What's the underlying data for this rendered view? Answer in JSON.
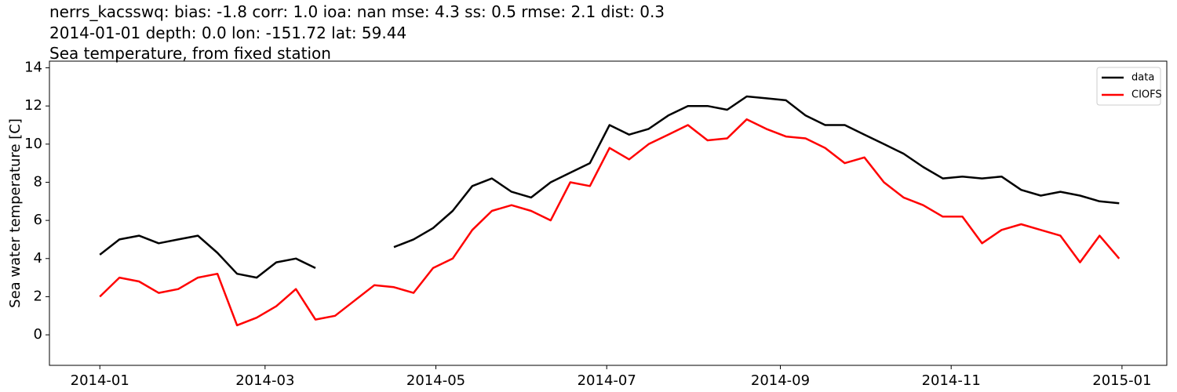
{
  "chart_data": {
    "type": "line",
    "title": "nerrs_kacsswq: bias: -1.8  corr: 1.0  ioa: nan  mse: 4.3  ss: 0.5  rmse: 2.1  dist: 0.3",
    "subtitle": "2014-01-01 depth: 0.0 lon: -151.72 lat: 59.44",
    "subtitle2": "Sea temperature, from fixed station",
    "y_label": "Sea water temperature [C]",
    "x": [
      0,
      7,
      14,
      21,
      28,
      35,
      42,
      49,
      56,
      63,
      70,
      77,
      84,
      91,
      98,
      105,
      112,
      119,
      126,
      133,
      140,
      147,
      154,
      161,
      168,
      175,
      182,
      189,
      196,
      203,
      210,
      217,
      224,
      231,
      238,
      245,
      252,
      259,
      266,
      273,
      280,
      287,
      294,
      301,
      308,
      315,
      322,
      329,
      336,
      343,
      350,
      357,
      364
    ],
    "series": [
      {
        "name": "data",
        "color": "#000000",
        "values": [
          4.2,
          5.0,
          5.2,
          4.8,
          5.0,
          5.2,
          4.3,
          3.2,
          3.0,
          3.8,
          4.0,
          3.5,
          null,
          null,
          null,
          4.6,
          5.0,
          5.6,
          6.5,
          7.8,
          8.2,
          7.5,
          7.2,
          8.0,
          8.5,
          9.0,
          11.0,
          10.5,
          10.8,
          11.5,
          12.0,
          12.0,
          11.8,
          12.5,
          12.4,
          12.3,
          11.5,
          11.0,
          11.0,
          10.5,
          10.0,
          9.5,
          8.8,
          8.2,
          8.3,
          8.2,
          8.3,
          7.6,
          7.3,
          7.5,
          7.3,
          7.0,
          6.9
        ]
      },
      {
        "name": "CIOFS",
        "color": "#ff0000",
        "values": [
          2.0,
          3.0,
          2.8,
          2.2,
          2.4,
          3.0,
          3.2,
          0.5,
          0.9,
          1.5,
          2.4,
          0.8,
          1.0,
          1.8,
          2.6,
          2.5,
          2.2,
          3.5,
          4.0,
          5.5,
          6.5,
          6.8,
          6.5,
          6.0,
          8.0,
          7.8,
          9.8,
          9.2,
          10.0,
          10.5,
          11.0,
          10.2,
          10.3,
          11.3,
          10.8,
          10.4,
          10.3,
          9.8,
          9.0,
          9.3,
          8.0,
          7.2,
          6.8,
          6.2,
          6.2,
          4.8,
          5.5,
          5.8,
          5.5,
          5.2,
          3.8,
          5.2,
          4.0
        ]
      }
    ],
    "xlim": [
      -18,
      381
    ],
    "xticks": [
      {
        "value": 0,
        "label": "2014-01"
      },
      {
        "value": 59,
        "label": "2014-03"
      },
      {
        "value": 120,
        "label": "2014-05"
      },
      {
        "value": 181,
        "label": "2014-07"
      },
      {
        "value": 243,
        "label": "2014-09"
      },
      {
        "value": 304,
        "label": "2014-11"
      },
      {
        "value": 365,
        "label": "2015-01"
      }
    ],
    "ylim": [
      -1.6,
      14.35
    ],
    "yticks": [
      0,
      2,
      4,
      6,
      8,
      10,
      12,
      14
    ],
    "legend": "upper right"
  }
}
